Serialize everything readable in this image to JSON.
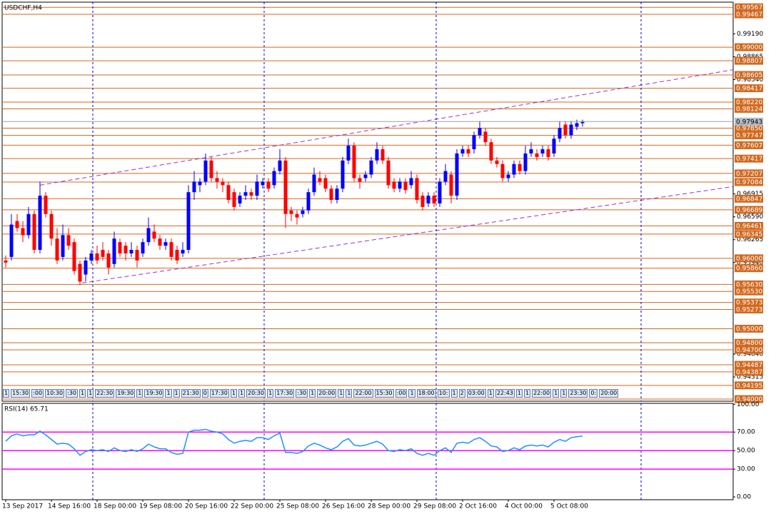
{
  "title": "USDCHF,H4",
  "chart_data": {
    "type": "candlestick",
    "categories": [
      "13 Sep 2017",
      null,
      null,
      null,
      null,
      null,
      null,
      null,
      "14 Sep 16:00",
      null,
      null,
      null,
      null,
      null,
      null,
      null,
      "18 Sep 00:00",
      null,
      null,
      null,
      null,
      null,
      null,
      null,
      "19 Sep 08:00",
      null,
      null,
      null,
      null,
      null,
      null,
      null,
      "20 Sep 16:00",
      null,
      null,
      null,
      null,
      null,
      null,
      null,
      "22 Sep 00:00",
      null,
      null,
      null,
      null,
      null,
      null,
      null,
      "25 Sep 08:00",
      null,
      null,
      null,
      null,
      null,
      null,
      null,
      "26 Sep 16:00",
      null,
      null,
      null,
      null,
      null,
      null,
      null,
      "28 Sep 00:00",
      null,
      null,
      null,
      null,
      null,
      null,
      null,
      "29 Sep 08:00",
      null,
      null,
      null,
      null,
      null,
      null,
      null,
      "2 Oct 16:00",
      null,
      null,
      null,
      null,
      null,
      null,
      null,
      "4 Oct 00:00",
      null,
      null,
      null,
      null,
      null,
      null,
      null,
      "5 Oct 08:00",
      null,
      null,
      null,
      null,
      null
    ],
    "open": [
      0.9597,
      0.9602,
      0.9653,
      0.9643,
      0.9633,
      0.9663,
      0.9612,
      0.9689,
      0.9663,
      0.9628,
      0.9602,
      0.9633,
      0.9623,
      0.9592,
      0.9577,
      0.9597,
      0.9607,
      0.9612,
      0.9607,
      0.9592,
      0.9623,
      0.9618,
      0.9607,
      0.9612,
      0.9607,
      0.9623,
      0.9638,
      0.9628,
      0.9618,
      0.9623,
      0.9612,
      0.9607,
      0.9612,
      0.9694,
      0.9704,
      0.9709,
      0.9739,
      0.9714,
      0.9709,
      0.9704,
      0.9694,
      0.9678,
      0.9689,
      0.9694,
      0.9689,
      0.9704,
      0.9709,
      0.9704,
      0.9724,
      0.9739,
      0.9668,
      0.9663,
      0.9663,
      0.9668,
      0.9694,
      0.9714,
      0.9714,
      0.9699,
      0.9683,
      0.9699,
      0.9739,
      0.976,
      0.9714,
      0.9714,
      0.9719,
      0.9739,
      0.9755,
      0.9739,
      0.9709,
      0.9699,
      0.9709,
      0.9704,
      0.9714,
      0.9689,
      0.9678,
      0.9689,
      0.9678,
      0.9709,
      0.9719,
      0.9689,
      0.9749,
      0.9755,
      0.9755,
      0.9775,
      0.978,
      0.9765,
      0.9739,
      0.9734,
      0.9714,
      0.9719,
      0.9734,
      0.9724,
      0.9749,
      0.9749,
      0.9749,
      0.9755,
      0.9749,
      0.977,
      0.979,
      0.9775,
      0.9787,
      0.9792
    ],
    "high": [
      0.9604,
      0.9663,
      0.9663,
      0.9653,
      0.9673,
      0.9668,
      0.9709,
      0.9694,
      0.9668,
      0.9643,
      0.9648,
      0.9643,
      0.9628,
      0.9597,
      0.9602,
      0.9612,
      0.9618,
      0.9623,
      0.9612,
      0.9638,
      0.9628,
      0.9623,
      0.9623,
      0.9618,
      0.9628,
      0.9658,
      0.9648,
      0.9633,
      0.9628,
      0.9628,
      0.9618,
      0.9623,
      0.9704,
      0.9724,
      0.9714,
      0.9749,
      0.9744,
      0.9724,
      0.9714,
      0.9709,
      0.9699,
      0.9694,
      0.9704,
      0.9699,
      0.9719,
      0.9714,
      0.9714,
      0.9729,
      0.9755,
      0.9744,
      0.9673,
      0.9668,
      0.9673,
      0.9699,
      0.9729,
      0.9724,
      0.9719,
      0.9704,
      0.9704,
      0.9744,
      0.977,
      0.9765,
      0.9719,
      0.9724,
      0.9744,
      0.9765,
      0.976,
      0.9744,
      0.9714,
      0.9714,
      0.9714,
      0.9724,
      0.9719,
      0.9694,
      0.9694,
      0.9694,
      0.9714,
      0.9734,
      0.9724,
      0.9755,
      0.976,
      0.976,
      0.978,
      0.9795,
      0.9785,
      0.977,
      0.9744,
      0.9739,
      0.9724,
      0.9739,
      0.9739,
      0.976,
      0.9765,
      0.9755,
      0.976,
      0.976,
      0.9775,
      0.9795,
      0.9795,
      0.9795,
      0.9797,
      0.9797
    ],
    "low": [
      0.9587,
      0.9597,
      0.9638,
      0.9623,
      0.9628,
      0.9607,
      0.9607,
      0.9658,
      0.9618,
      0.9592,
      0.9597,
      0.9612,
      0.9577,
      0.9562,
      0.9567,
      0.9592,
      0.9592,
      0.9597,
      0.9577,
      0.9587,
      0.9602,
      0.9597,
      0.9602,
      0.9587,
      0.9602,
      0.9618,
      0.9623,
      0.9612,
      0.9612,
      0.9597,
      0.9592,
      0.9602,
      0.9607,
      0.9683,
      0.9694,
      0.9704,
      0.9709,
      0.9699,
      0.9694,
      0.9678,
      0.9668,
      0.9673,
      0.9683,
      0.9683,
      0.9683,
      0.9699,
      0.9694,
      0.9699,
      0.9719,
      0.9643,
      0.9653,
      0.9648,
      0.9658,
      0.9663,
      0.9689,
      0.9704,
      0.9694,
      0.9678,
      0.9678,
      0.9694,
      0.9734,
      0.9709,
      0.9699,
      0.9709,
      0.9714,
      0.9734,
      0.9734,
      0.9699,
      0.9694,
      0.9694,
      0.9692,
      0.9699,
      0.9678,
      0.9668,
      0.9673,
      0.9673,
      0.9673,
      0.9704,
      0.9678,
      0.9683,
      0.9744,
      0.9744,
      0.9749,
      0.977,
      0.976,
      0.9734,
      0.9729,
      0.9709,
      0.9709,
      0.9714,
      0.9719,
      0.9719,
      0.9744,
      0.9739,
      0.9744,
      0.9739,
      0.9744,
      0.9765,
      0.977,
      0.977,
      0.9782,
      0.9787
    ],
    "close": [
      0.9594,
      0.9648,
      0.9643,
      0.9633,
      0.9663,
      0.9612,
      0.9689,
      0.9663,
      0.9628,
      0.9597,
      0.9633,
      0.9618,
      0.9582,
      0.9567,
      0.9597,
      0.9607,
      0.9597,
      0.9602,
      0.9587,
      0.9628,
      0.9607,
      0.9607,
      0.9612,
      0.9597,
      0.9623,
      0.9643,
      0.9628,
      0.9618,
      0.9623,
      0.9602,
      0.9597,
      0.9612,
      0.9694,
      0.9709,
      0.9709,
      0.9739,
      0.9714,
      0.9709,
      0.9704,
      0.9683,
      0.9673,
      0.9689,
      0.9694,
      0.9689,
      0.9709,
      0.9709,
      0.9699,
      0.9724,
      0.9739,
      0.9663,
      0.9663,
      0.9658,
      0.9668,
      0.9694,
      0.9719,
      0.9709,
      0.9699,
      0.9683,
      0.9699,
      0.9739,
      0.976,
      0.9714,
      0.9709,
      0.9719,
      0.9739,
      0.9755,
      0.9739,
      0.9704,
      0.9699,
      0.9709,
      0.9697,
      0.9714,
      0.9683,
      0.9673,
      0.9689,
      0.9678,
      0.9709,
      0.9724,
      0.9689,
      0.9749,
      0.9755,
      0.9749,
      0.9775,
      0.9785,
      0.9765,
      0.9739,
      0.9734,
      0.9714,
      0.9719,
      0.9734,
      0.9724,
      0.9749,
      0.9755,
      0.9744,
      0.9755,
      0.9744,
      0.977,
      0.9785,
      0.9775,
      0.979,
      0.9792,
      0.9794
    ],
    "up_color": "#0000ff",
    "down_color": "#ff0000",
    "ylim": [
      0.9397,
      0.9964
    ],
    "yticks": [
      {
        "value": 0.9919,
        "label": "0.99190"
      },
      0.98865,
      {
        "value": 0.9854,
        "label": "0.98540"
      },
      0.96915,
      {
        "value": 0.9659,
        "label": "0.96590"
      },
      0.96265,
      {
        "value": 0.9594,
        "label": "0.95940"
      },
      {
        "value": 0.9464,
        "label": "0.94640"
      },
      0.94315
    ],
    "levels": [
      0.99567,
      0.99467,
      {
        "value": 0.99,
        "label": "0.99000"
      },
      0.98807,
      0.98605,
      0.98417,
      {
        "value": 0.9822,
        "label": "0.98220"
      },
      0.98124,
      {
        "value": 0.9785,
        "label": "0.97850"
      },
      0.97747,
      0.97607,
      0.97417,
      0.97207,
      0.97084,
      0.96847,
      0.96689,
      0.96461,
      0.96345,
      {
        "value": 0.96,
        "label": "0.96000"
      },
      {
        "value": 0.9586,
        "label": "0.95860"
      },
      {
        "value": 0.9563,
        "label": "0.95630"
      },
      {
        "value": 0.9553,
        "label": "0.95530"
      },
      0.95373,
      0.95273,
      {
        "value": 0.95,
        "label": "0.95000"
      },
      {
        "value": 0.948,
        "label": "0.94800"
      },
      {
        "value": 0.947,
        "label": "0.94700"
      },
      0.94487,
      0.94387,
      0.94195,
      {
        "value": 0.94,
        "label": "0.94000"
      }
    ],
    "level_color": "#d2691e",
    "current_price": 0.97943,
    "trendlines": [
      {
        "x": [
          6,
          127.4
        ],
        "y": [
          0.9704,
          0.9868
        ]
      },
      {
        "x": [
          13.4,
          127.4
        ],
        "y": [
          0.9565,
          0.9702
        ]
      }
    ],
    "trendline_color": "#9932cc"
  },
  "time_flags": [
    "1",
    "15:30",
    ":00",
    "10:30",
    ":30",
    "1",
    "1",
    "22:30",
    "19:30",
    "1",
    "19:30",
    "1",
    "1",
    "21:30",
    "0",
    "17:30",
    "1",
    "1",
    "20:30",
    "1",
    "17:30",
    ":30",
    "1",
    "20:00",
    "1",
    "1",
    "22:00",
    "15:30",
    ":00",
    "1",
    "18:00",
    "10:",
    "1",
    "2",
    "03:00",
    "1",
    "22:43",
    "1",
    "1",
    "22:00",
    "1",
    "1",
    "23:30",
    "0:",
    "20:00"
  ],
  "rsi": {
    "type": "line",
    "title": "RSI(14) 65.71",
    "color": "#1e90ff",
    "values": [
      60,
      66,
      68,
      66,
      67,
      67,
      71,
      67,
      62,
      57,
      58,
      57,
      52,
      45,
      49,
      51,
      50,
      51,
      49,
      53,
      50,
      49,
      51,
      49,
      52,
      57,
      54,
      52,
      52,
      48,
      46,
      47,
      70,
      72,
      72,
      73,
      71,
      70,
      68,
      62,
      58,
      60,
      61,
      60,
      64,
      64,
      62,
      66,
      69,
      48,
      48,
      47,
      49,
      55,
      58,
      56,
      53,
      51,
      54,
      60,
      63,
      56,
      55,
      56,
      58,
      60,
      57,
      50,
      49,
      51,
      50,
      52,
      47,
      45,
      47,
      45,
      50,
      53,
      48,
      58,
      59,
      58,
      62,
      64,
      60,
      55,
      54,
      49,
      50,
      53,
      51,
      55,
      56,
      55,
      56,
      54,
      59,
      62,
      60,
      64,
      65,
      65.71
    ],
    "ylim": [
      -3,
      101
    ],
    "yticks": [
      {
        "value": 100,
        "label": "100.00"
      },
      {
        "value": 70,
        "label": "70.00"
      },
      {
        "value": 50,
        "label": "50.00"
      },
      {
        "value": 30,
        "label": "30.00"
      },
      {
        "value": 0,
        "label": "0.00"
      }
    ],
    "levels": [
      70,
      50,
      30
    ],
    "level_color": "#ff00ff"
  }
}
